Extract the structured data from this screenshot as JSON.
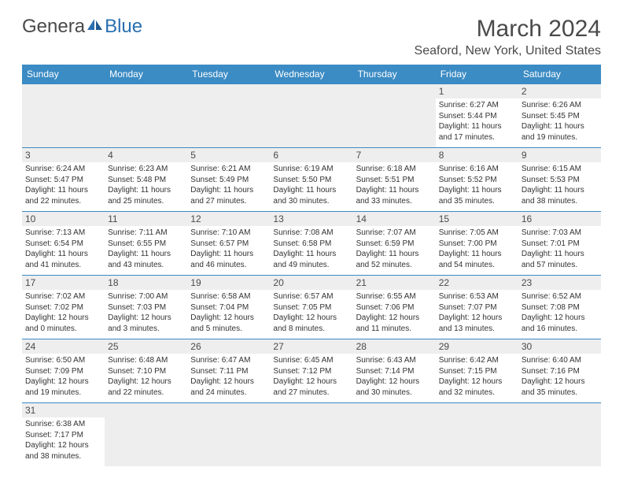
{
  "logo": {
    "part1": "Genera",
    "part2": "Blue"
  },
  "title": "March 2024",
  "subtitle": "Seaford, New York, United States",
  "columns": [
    "Sunday",
    "Monday",
    "Tuesday",
    "Wednesday",
    "Thursday",
    "Friday",
    "Saturday"
  ],
  "colors": {
    "header_bg": "#3b8bc4",
    "header_text": "#ffffff",
    "shaded_bg": "#eeeeee",
    "border": "#3b8bc4",
    "title_color": "#4a4a4a",
    "logo_blue": "#2a6fb0"
  },
  "days": [
    {
      "num": 1,
      "sunrise": "6:27 AM",
      "sunset": "5:44 PM",
      "daylight": "11 hours and 17 minutes."
    },
    {
      "num": 2,
      "sunrise": "6:26 AM",
      "sunset": "5:45 PM",
      "daylight": "11 hours and 19 minutes."
    },
    {
      "num": 3,
      "sunrise": "6:24 AM",
      "sunset": "5:47 PM",
      "daylight": "11 hours and 22 minutes."
    },
    {
      "num": 4,
      "sunrise": "6:23 AM",
      "sunset": "5:48 PM",
      "daylight": "11 hours and 25 minutes."
    },
    {
      "num": 5,
      "sunrise": "6:21 AM",
      "sunset": "5:49 PM",
      "daylight": "11 hours and 27 minutes."
    },
    {
      "num": 6,
      "sunrise": "6:19 AM",
      "sunset": "5:50 PM",
      "daylight": "11 hours and 30 minutes."
    },
    {
      "num": 7,
      "sunrise": "6:18 AM",
      "sunset": "5:51 PM",
      "daylight": "11 hours and 33 minutes."
    },
    {
      "num": 8,
      "sunrise": "6:16 AM",
      "sunset": "5:52 PM",
      "daylight": "11 hours and 35 minutes."
    },
    {
      "num": 9,
      "sunrise": "6:15 AM",
      "sunset": "5:53 PM",
      "daylight": "11 hours and 38 minutes."
    },
    {
      "num": 10,
      "sunrise": "7:13 AM",
      "sunset": "6:54 PM",
      "daylight": "11 hours and 41 minutes."
    },
    {
      "num": 11,
      "sunrise": "7:11 AM",
      "sunset": "6:55 PM",
      "daylight": "11 hours and 43 minutes."
    },
    {
      "num": 12,
      "sunrise": "7:10 AM",
      "sunset": "6:57 PM",
      "daylight": "11 hours and 46 minutes."
    },
    {
      "num": 13,
      "sunrise": "7:08 AM",
      "sunset": "6:58 PM",
      "daylight": "11 hours and 49 minutes."
    },
    {
      "num": 14,
      "sunrise": "7:07 AM",
      "sunset": "6:59 PM",
      "daylight": "11 hours and 52 minutes."
    },
    {
      "num": 15,
      "sunrise": "7:05 AM",
      "sunset": "7:00 PM",
      "daylight": "11 hours and 54 minutes."
    },
    {
      "num": 16,
      "sunrise": "7:03 AM",
      "sunset": "7:01 PM",
      "daylight": "11 hours and 57 minutes."
    },
    {
      "num": 17,
      "sunrise": "7:02 AM",
      "sunset": "7:02 PM",
      "daylight": "12 hours and 0 minutes."
    },
    {
      "num": 18,
      "sunrise": "7:00 AM",
      "sunset": "7:03 PM",
      "daylight": "12 hours and 3 minutes."
    },
    {
      "num": 19,
      "sunrise": "6:58 AM",
      "sunset": "7:04 PM",
      "daylight": "12 hours and 5 minutes."
    },
    {
      "num": 20,
      "sunrise": "6:57 AM",
      "sunset": "7:05 PM",
      "daylight": "12 hours and 8 minutes."
    },
    {
      "num": 21,
      "sunrise": "6:55 AM",
      "sunset": "7:06 PM",
      "daylight": "12 hours and 11 minutes."
    },
    {
      "num": 22,
      "sunrise": "6:53 AM",
      "sunset": "7:07 PM",
      "daylight": "12 hours and 13 minutes."
    },
    {
      "num": 23,
      "sunrise": "6:52 AM",
      "sunset": "7:08 PM",
      "daylight": "12 hours and 16 minutes."
    },
    {
      "num": 24,
      "sunrise": "6:50 AM",
      "sunset": "7:09 PM",
      "daylight": "12 hours and 19 minutes."
    },
    {
      "num": 25,
      "sunrise": "6:48 AM",
      "sunset": "7:10 PM",
      "daylight": "12 hours and 22 minutes."
    },
    {
      "num": 26,
      "sunrise": "6:47 AM",
      "sunset": "7:11 PM",
      "daylight": "12 hours and 24 minutes."
    },
    {
      "num": 27,
      "sunrise": "6:45 AM",
      "sunset": "7:12 PM",
      "daylight": "12 hours and 27 minutes."
    },
    {
      "num": 28,
      "sunrise": "6:43 AM",
      "sunset": "7:14 PM",
      "daylight": "12 hours and 30 minutes."
    },
    {
      "num": 29,
      "sunrise": "6:42 AM",
      "sunset": "7:15 PM",
      "daylight": "12 hours and 32 minutes."
    },
    {
      "num": 30,
      "sunrise": "6:40 AM",
      "sunset": "7:16 PM",
      "daylight": "12 hours and 35 minutes."
    },
    {
      "num": 31,
      "sunrise": "6:38 AM",
      "sunset": "7:17 PM",
      "daylight": "12 hours and 38 minutes."
    }
  ],
  "first_weekday_index": 5,
  "labels": {
    "sunrise": "Sunrise:",
    "sunset": "Sunset:",
    "daylight": "Daylight:"
  }
}
